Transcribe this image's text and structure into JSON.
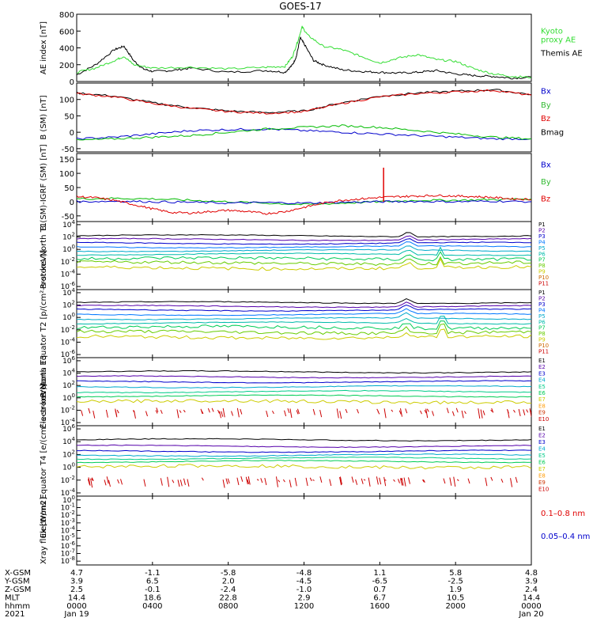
{
  "title": "GOES-17",
  "colors": {
    "black": "#000000",
    "red": "#e00000",
    "green": "#00d000",
    "blue": "#0000cc",
    "lightgreen": "#33dd33",
    "proxy": "#33dd33"
  },
  "chart_data": [
    {
      "id": "ae",
      "type": "line",
      "ylabel": "AE index [nT]",
      "yticks": [
        "800",
        "600",
        "400",
        "200",
        "0"
      ],
      "ylim": [
        0,
        800
      ],
      "legend": [
        {
          "name": "Kyoto proxy AE",
          "lines": [
            "Kyoto",
            "proxy AE"
          ],
          "color": "#33dd33"
        },
        {
          "name": "Themis AE",
          "lines": [
            "Themis AE"
          ],
          "color": "#000000"
        }
      ],
      "series": [
        {
          "name": "Themis AE",
          "color": "#000000",
          "x": [
            0,
            1,
            2,
            2.5,
            3,
            3.5,
            4,
            5,
            6,
            8,
            10,
            11,
            11.4,
            11.6,
            11.8,
            12,
            12.5,
            13,
            14,
            15,
            16,
            17,
            18,
            19,
            20,
            21,
            22,
            23,
            24
          ],
          "y": [
            80,
            200,
            380,
            420,
            250,
            150,
            120,
            130,
            160,
            110,
            130,
            110,
            200,
            300,
            520,
            450,
            250,
            200,
            140,
            120,
            110,
            100,
            110,
            130,
            90,
            70,
            60,
            40,
            50
          ]
        },
        {
          "name": "Kyoto proxy AE",
          "color": "#33dd33",
          "x": [
            0,
            1,
            2,
            2.5,
            3,
            4,
            6,
            8,
            10,
            11,
            11.4,
            11.7,
            11.9,
            12.2,
            13,
            14,
            15,
            16,
            17,
            18,
            19,
            20,
            21,
            22,
            23,
            24
          ],
          "y": [
            110,
            160,
            250,
            300,
            200,
            160,
            170,
            150,
            170,
            180,
            300,
            500,
            650,
            550,
            420,
            380,
            300,
            220,
            280,
            320,
            260,
            240,
            150,
            90,
            60,
            50
          ]
        }
      ]
    },
    {
      "id": "bsm",
      "type": "line",
      "ylabel": "B (SM) [nT]",
      "yticks": [
        "100",
        "50",
        "0",
        "-50"
      ],
      "ylim": [
        -60,
        150
      ],
      "legend": [
        {
          "name": "Bx",
          "lines": [
            "Bx"
          ],
          "color": "#0000cc"
        },
        {
          "name": "By",
          "lines": [
            "By"
          ],
          "color": "#33bb33"
        },
        {
          "name": "Bz",
          "lines": [
            "Bz"
          ],
          "color": "#e00000"
        },
        {
          "name": "Bmag",
          "lines": [
            "Bmag"
          ],
          "color": "#000000"
        }
      ],
      "series": [
        {
          "name": "Bmag",
          "color": "#000000",
          "x": [
            0,
            2,
            4,
            6,
            8,
            10,
            12,
            14,
            16,
            18,
            20,
            22,
            24
          ],
          "y": [
            120,
            110,
            90,
            75,
            65,
            60,
            65,
            90,
            110,
            120,
            125,
            130,
            115
          ]
        },
        {
          "name": "Bz",
          "color": "#e00000",
          "x": [
            0,
            2,
            4,
            6,
            8,
            10,
            12,
            14,
            16,
            18,
            20,
            22,
            24
          ],
          "y": [
            118,
            108,
            88,
            73,
            63,
            58,
            63,
            88,
            108,
            118,
            123,
            128,
            113
          ]
        },
        {
          "name": "Bx",
          "color": "#0000cc",
          "x": [
            0,
            2,
            4,
            6,
            8,
            10,
            12,
            14,
            16,
            18,
            20,
            22,
            24
          ],
          "y": [
            -20,
            -15,
            -5,
            5,
            8,
            10,
            5,
            0,
            -5,
            -10,
            -15,
            -20,
            -20
          ]
        },
        {
          "name": "By",
          "color": "#00bb00",
          "x": [
            0,
            2,
            4,
            6,
            8,
            10,
            12,
            14,
            16,
            18,
            20,
            22,
            24
          ],
          "y": [
            -25,
            -20,
            -15,
            -10,
            0,
            10,
            15,
            20,
            15,
            5,
            -5,
            -15,
            -20
          ]
        }
      ]
    },
    {
      "id": "bdiff",
      "type": "line",
      "ylabel": "B (SM)-IGRF (SM) [nT]",
      "yticks": [
        "150",
        "100",
        "50",
        "0",
        "-50"
      ],
      "ylim": [
        -70,
        170
      ],
      "legend": [
        {
          "name": "Bx",
          "lines": [
            "Bx"
          ],
          "color": "#0000cc"
        },
        {
          "name": "By",
          "lines": [
            "By"
          ],
          "color": "#33bb33"
        },
        {
          "name": "Bz",
          "lines": [
            "Bz"
          ],
          "color": "#e00000"
        }
      ],
      "series": [
        {
          "name": "By",
          "color": "#00bb00",
          "x": [
            0,
            2,
            4,
            6,
            8,
            10,
            12,
            14,
            16,
            18,
            20,
            22,
            24
          ],
          "y": [
            10,
            12,
            10,
            5,
            0,
            -5,
            -10,
            -5,
            0,
            5,
            5,
            8,
            10
          ]
        },
        {
          "name": "Bx",
          "color": "#0000cc",
          "x": [
            0,
            2,
            4,
            6,
            8,
            10,
            12,
            14,
            16,
            18,
            20,
            22,
            24
          ],
          "y": [
            0,
            2,
            0,
            -2,
            -5,
            -3,
            -5,
            -2,
            0,
            1,
            0,
            2,
            0
          ]
        },
        {
          "name": "Bz",
          "color": "#e00000",
          "x": [
            0,
            1,
            2,
            3,
            4,
            5,
            6,
            7,
            8,
            9,
            10,
            11,
            12,
            13,
            14,
            15,
            16,
            17,
            18,
            19,
            20,
            21,
            22,
            23,
            24
          ],
          "y": [
            18,
            14,
            5,
            -10,
            -25,
            -38,
            -40,
            -35,
            -30,
            -35,
            -42,
            -35,
            -20,
            -5,
            5,
            10,
            15,
            18,
            20,
            22,
            20,
            18,
            15,
            10,
            8
          ]
        }
      ],
      "spikes": [
        {
          "x": 16.2,
          "y": 120,
          "color": "#e00000"
        }
      ]
    },
    {
      "id": "p1",
      "type": "line",
      "ylabel": "Protons North T1",
      "ylog": true,
      "yticks": [
        "10^4",
        "10^2",
        "10^0",
        "10^-2",
        "10^-4",
        "10^-6"
      ],
      "yexp": [
        4,
        2,
        0,
        -2,
        -4,
        -6
      ],
      "ylim": [
        -6.5,
        4.5
      ],
      "legend_small": [
        "P1",
        "P2",
        "P3",
        "P4",
        "P5",
        "P6",
        "P7",
        "P8",
        "P9",
        "P10",
        "P11"
      ],
      "legend_colors": [
        "#000000",
        "#5500aa",
        "#0000cc",
        "#0077ff",
        "#00aacc",
        "#00bbaa",
        "#00cc55",
        "#66cc00",
        "#cccc00",
        "#cc6600",
        "#cc0000"
      ],
      "levels": [
        2.2,
        1.6,
        1.0,
        0.4,
        -0.2,
        -0.8,
        -1.5,
        -2.2,
        -3.0
      ],
      "spike_x": 17.5,
      "feature_x": 19.2
    },
    {
      "id": "p2",
      "type": "line",
      "ylabel": "Protons Equator T2 [p/(cm²-s-sr-keV)]",
      "ylog": true,
      "yticks": [
        "10^4",
        "10^2",
        "10^0",
        "10^-2",
        "10^-4",
        "10^-6"
      ],
      "yexp": [
        4,
        2,
        0,
        -2,
        -4,
        -6
      ],
      "ylim": [
        -6.5,
        4.5
      ],
      "legend_small": [
        "P1",
        "P2",
        "P3",
        "P4",
        "P5",
        "P6",
        "P7",
        "P8",
        "P9",
        "P10",
        "P11"
      ],
      "legend_colors": [
        "#000000",
        "#5500aa",
        "#0000cc",
        "#0077ff",
        "#00aacc",
        "#00bbaa",
        "#00cc55",
        "#66cc00",
        "#cccc00",
        "#cc6600",
        "#cc0000"
      ],
      "levels": [
        2.4,
        1.8,
        1.2,
        0.5,
        -0.2,
        -0.9,
        -1.6,
        -2.4,
        -3.2
      ],
      "spike_x": 17.4,
      "feature_x": 19.3
    },
    {
      "id": "e1",
      "type": "line",
      "ylabel": "Electrons North T3",
      "ylog": true,
      "yticks": [
        "10^6",
        "10^4",
        "10^2",
        "10^0",
        "10^-2",
        "10^-4"
      ],
      "yexp": [
        6,
        4,
        2,
        0,
        -2,
        -4
      ],
      "ylim": [
        -4.5,
        6.5
      ],
      "legend_small": [
        "E1",
        "E2",
        "E3",
        "E4",
        "E5",
        "E6",
        "E7",
        "E8",
        "E9",
        "E10"
      ],
      "legend_colors": [
        "#000000",
        "#5500aa",
        "#0000cc",
        "#00aacc",
        "#00cc88",
        "#00cc55",
        "#cccc00",
        "#ff9900",
        "#cc3300",
        "#cc0000"
      ],
      "levels": [
        4.2,
        3.4,
        2.6,
        1.8,
        1.0,
        0.3,
        -0.6
      ],
      "noise_level": -2.2
    },
    {
      "id": "e2",
      "type": "line",
      "ylabel": "Electrons Equator T4 [e/(cm²-s-sr-keV)]",
      "ylog": true,
      "yticks": [
        "10^6",
        "10^4",
        "10^2",
        "10^0",
        "10^-2",
        "10^-4"
      ],
      "yexp": [
        6,
        4,
        2,
        0,
        -2,
        -4
      ],
      "ylim": [
        -4.5,
        6.5
      ],
      "legend_small": [
        "E1",
        "E2",
        "E3",
        "E4",
        "E5",
        "E6",
        "E7",
        "E8",
        "E9",
        "E10"
      ],
      "legend_colors": [
        "#000000",
        "#5500aa",
        "#0000cc",
        "#00aacc",
        "#00cc88",
        "#00cc55",
        "#cccc00",
        "#ff9900",
        "#cc3300",
        "#cc0000"
      ],
      "levels": [
        4.3,
        3.3,
        2.5,
        1.9,
        1.4,
        0.9,
        0.1
      ],
      "noise_level": -2.0
    },
    {
      "id": "xray",
      "type": "line",
      "ylabel": "Xray flux [W/m2]",
      "ylog": true,
      "yticks": [
        "10^0",
        "10^-1",
        "10^-2",
        "10^-3",
        "10^-4",
        "10^-5",
        "10^-6",
        "10^-7",
        "10^-8"
      ],
      "yexp": [
        0,
        -1,
        -2,
        -3,
        -4,
        -5,
        -6,
        -7,
        -8
      ],
      "ylim": [
        -8.5,
        0.5
      ],
      "legend": [
        {
          "name": "0.1-0.8 nm",
          "lines": [
            "0.1–0.8 nm"
          ],
          "color": "#e00000"
        },
        {
          "name": "0.05-0.4 nm",
          "lines": [
            "0.05–0.4 nm"
          ],
          "color": "#0000cc"
        }
      ]
    }
  ],
  "axis": {
    "rows": [
      {
        "label": "X-GSM",
        "values": [
          "4.7",
          "-1.1",
          "-5.8",
          "-4.8",
          "1.1",
          "5.8",
          "4.8"
        ]
      },
      {
        "label": "Y-GSM",
        "values": [
          "3.9",
          "6.5",
          "2.0",
          "-4.5",
          "-6.5",
          "-2.5",
          "3.9"
        ]
      },
      {
        "label": "Z-GSM",
        "values": [
          "2.5",
          "-0.1",
          "-2.4",
          "-1.0",
          "0.7",
          "1.9",
          "2.4"
        ]
      },
      {
        "label": "MLT",
        "values": [
          "14.4",
          "18.6",
          "22.8",
          "2.9",
          "6.7",
          "10.5",
          "14.4"
        ]
      },
      {
        "label": "hhmm",
        "values": [
          "0000",
          "0400",
          "0800",
          "1200",
          "1600",
          "2000",
          "0000"
        ]
      }
    ],
    "year": "2021",
    "date_start": "Jan 19",
    "date_end": "Jan 20",
    "hours": [
      0,
      4,
      8,
      12,
      16,
      20,
      24
    ]
  }
}
